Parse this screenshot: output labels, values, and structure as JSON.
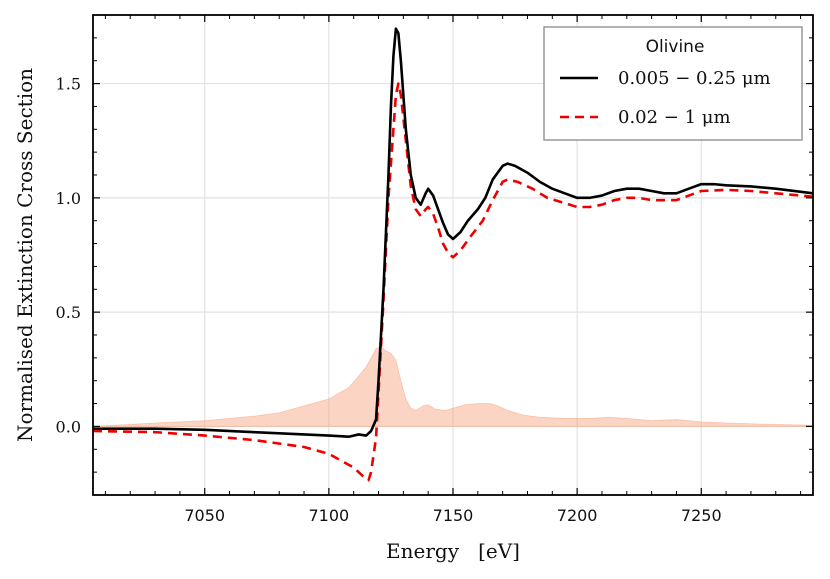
{
  "chart_data": {
    "type": "line",
    "title": "",
    "xlabel": "Energy   [eV]",
    "ylabel": "Normalised Extinction Cross Section",
    "xlim": [
      7005,
      7295
    ],
    "ylim": [
      -0.3,
      1.8
    ],
    "xticks": [
      7050,
      7100,
      7150,
      7200,
      7250
    ],
    "xtick_labels": [
      "7050",
      "7100",
      "7150",
      "7200",
      "7250"
    ],
    "yticks": [
      0.0,
      0.5,
      1.0,
      1.5
    ],
    "ytick_labels": [
      "0.0",
      "0.5",
      "1.0",
      "1.5"
    ],
    "grid": true,
    "legend": {
      "title": "Olivine",
      "placement": "top-right",
      "entries": [
        "0.005 − 0.25 μm",
        "0.02 − 1 μm"
      ]
    },
    "series": [
      {
        "name": "0.005 − 0.25 μm",
        "color": "#000000",
        "dash": "solid",
        "points": [
          [
            7005,
            -0.01
          ],
          [
            7030,
            -0.01
          ],
          [
            7050,
            -0.015
          ],
          [
            7070,
            -0.025
          ],
          [
            7090,
            -0.035
          ],
          [
            7100,
            -0.04
          ],
          [
            7108,
            -0.045
          ],
          [
            7112,
            -0.035
          ],
          [
            7115,
            -0.04
          ],
          [
            7117,
            -0.02
          ],
          [
            7119,
            0.03
          ],
          [
            7120,
            0.2
          ],
          [
            7122,
            0.6
          ],
          [
            7124,
            1.1
          ],
          [
            7125,
            1.4
          ],
          [
            7126,
            1.62
          ],
          [
            7127,
            1.74
          ],
          [
            7128,
            1.72
          ],
          [
            7129,
            1.6
          ],
          [
            7131,
            1.3
          ],
          [
            7133,
            1.1
          ],
          [
            7135,
            1.0
          ],
          [
            7137,
            0.97
          ],
          [
            7139,
            1.02
          ],
          [
            7140,
            1.04
          ],
          [
            7142,
            1.01
          ],
          [
            7144,
            0.95
          ],
          [
            7146,
            0.89
          ],
          [
            7148,
            0.84
          ],
          [
            7150,
            0.82
          ],
          [
            7153,
            0.85
          ],
          [
            7156,
            0.9
          ],
          [
            7160,
            0.95
          ],
          [
            7163,
            1.0
          ],
          [
            7166,
            1.08
          ],
          [
            7170,
            1.14
          ],
          [
            7172,
            1.15
          ],
          [
            7175,
            1.14
          ],
          [
            7180,
            1.11
          ],
          [
            7185,
            1.07
          ],
          [
            7190,
            1.04
          ],
          [
            7195,
            1.02
          ],
          [
            7200,
            1.0
          ],
          [
            7205,
            1.0
          ],
          [
            7210,
            1.01
          ],
          [
            7215,
            1.03
          ],
          [
            7220,
            1.04
          ],
          [
            7225,
            1.04
          ],
          [
            7230,
            1.03
          ],
          [
            7235,
            1.02
          ],
          [
            7240,
            1.02
          ],
          [
            7245,
            1.04
          ],
          [
            7250,
            1.06
          ],
          [
            7255,
            1.06
          ],
          [
            7260,
            1.055
          ],
          [
            7270,
            1.05
          ],
          [
            7280,
            1.04
          ],
          [
            7295,
            1.02
          ]
        ]
      },
      {
        "name": "0.02 − 1 μm",
        "color": "#ee0000",
        "dash": "dashed",
        "points": [
          [
            7005,
            -0.02
          ],
          [
            7030,
            -0.025
          ],
          [
            7050,
            -0.04
          ],
          [
            7070,
            -0.06
          ],
          [
            7090,
            -0.09
          ],
          [
            7100,
            -0.12
          ],
          [
            7105,
            -0.15
          ],
          [
            7110,
            -0.18
          ],
          [
            7114,
            -0.22
          ],
          [
            7116,
            -0.235
          ],
          [
            7117,
            -0.2
          ],
          [
            7119,
            -0.05
          ],
          [
            7120,
            0.15
          ],
          [
            7122,
            0.55
          ],
          [
            7124,
            1.0
          ],
          [
            7126,
            1.3
          ],
          [
            7127,
            1.45
          ],
          [
            7128,
            1.5
          ],
          [
            7129,
            1.45
          ],
          [
            7131,
            1.25
          ],
          [
            7133,
            1.05
          ],
          [
            7135,
            0.95
          ],
          [
            7137,
            0.92
          ],
          [
            7139,
            0.95
          ],
          [
            7140,
            0.96
          ],
          [
            7142,
            0.93
          ],
          [
            7144,
            0.87
          ],
          [
            7146,
            0.8
          ],
          [
            7148,
            0.76
          ],
          [
            7150,
            0.74
          ],
          [
            7153,
            0.77
          ],
          [
            7157,
            0.83
          ],
          [
            7162,
            0.9
          ],
          [
            7166,
            0.99
          ],
          [
            7170,
            1.07
          ],
          [
            7172,
            1.08
          ],
          [
            7176,
            1.07
          ],
          [
            7182,
            1.04
          ],
          [
            7188,
            1.0
          ],
          [
            7194,
            0.98
          ],
          [
            7200,
            0.96
          ],
          [
            7205,
            0.96
          ],
          [
            7210,
            0.97
          ],
          [
            7215,
            0.99
          ],
          [
            7220,
            1.0
          ],
          [
            7225,
            1.0
          ],
          [
            7230,
            0.99
          ],
          [
            7235,
            0.99
          ],
          [
            7240,
            0.99
          ],
          [
            7245,
            1.01
          ],
          [
            7250,
            1.03
          ],
          [
            7260,
            1.035
          ],
          [
            7270,
            1.03
          ],
          [
            7280,
            1.02
          ],
          [
            7295,
            1.005
          ]
        ]
      }
    ],
    "difference_band": {
      "color": "#f7a07a",
      "opacity": 0.45,
      "points": [
        [
          7005,
          0.0
        ],
        [
          7030,
          0.015
        ],
        [
          7050,
          0.025
        ],
        [
          7070,
          0.045
        ],
        [
          7080,
          0.06
        ],
        [
          7090,
          0.09
        ],
        [
          7100,
          0.12
        ],
        [
          7108,
          0.17
        ],
        [
          7112,
          0.22
        ],
        [
          7115,
          0.26
        ],
        [
          7117,
          0.3
        ],
        [
          7119,
          0.34
        ],
        [
          7121,
          0.35
        ],
        [
          7123,
          0.33
        ],
        [
          7125,
          0.32
        ],
        [
          7127,
          0.29
        ],
        [
          7129,
          0.2
        ],
        [
          7131,
          0.12
        ],
        [
          7133,
          0.08
        ],
        [
          7135,
          0.07
        ],
        [
          7138,
          0.09
        ],
        [
          7140,
          0.095
        ],
        [
          7143,
          0.075
        ],
        [
          7147,
          0.07
        ],
        [
          7150,
          0.08
        ],
        [
          7155,
          0.095
        ],
        [
          7160,
          0.1
        ],
        [
          7165,
          0.1
        ],
        [
          7168,
          0.09
        ],
        [
          7172,
          0.07
        ],
        [
          7178,
          0.05
        ],
        [
          7185,
          0.04
        ],
        [
          7195,
          0.035
        ],
        [
          7205,
          0.035
        ],
        [
          7213,
          0.04
        ],
        [
          7220,
          0.035
        ],
        [
          7230,
          0.025
        ],
        [
          7240,
          0.03
        ],
        [
          7250,
          0.02
        ],
        [
          7260,
          0.015
        ],
        [
          7275,
          0.01
        ],
        [
          7295,
          0.005
        ]
      ]
    }
  }
}
